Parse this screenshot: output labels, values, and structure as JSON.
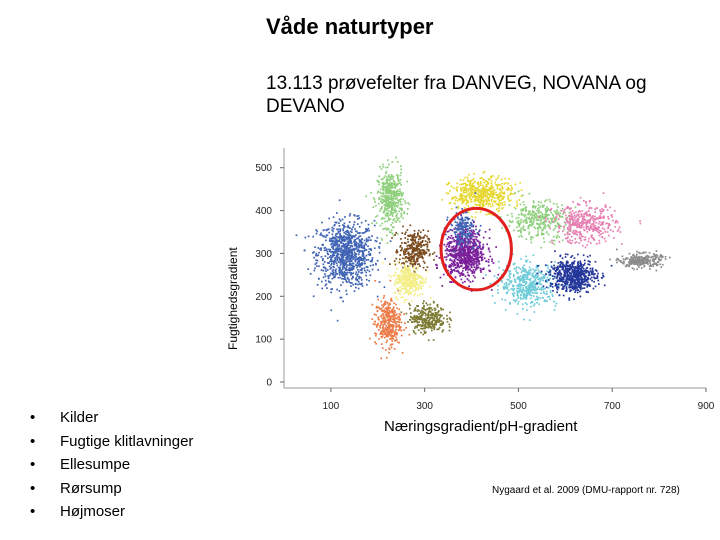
{
  "title": "Våde naturtyper",
  "subtitle": "13.113 prøvefelter fra DANVEG, NOVANA og DEVANO",
  "legend_items": [
    "Kilder",
    "Fugtige klitlavninger",
    "Ellesumpe",
    "Rørsump",
    "Højmoser"
  ],
  "citation": "Nygaard et al. 2009 (DMU-rapport nr. 728)",
  "colors": {
    "blue": "#3f63b4",
    "light_green": "#8fd07d",
    "yellow": "#e7d831",
    "purple": "#7a1f9a",
    "pink": "#e77fb2",
    "cyan": "#6ecbd8",
    "navy": "#23369a",
    "gray": "#8a8a8a",
    "brown": "#7a4a1e",
    "light_yellow": "#f3ee85",
    "orange": "#ec7a46",
    "olive": "#7c7b33",
    "highlight_circle": "#e11f1f"
  },
  "chart_data": {
    "type": "scatter",
    "title": "",
    "xlabel": "Næringsgradient/pH-gradient",
    "ylabel": "Fugtighedsgradient",
    "x_ticks": [
      100,
      300,
      500,
      700,
      900
    ],
    "y_ticks": [
      0,
      100,
      200,
      300,
      400,
      500
    ],
    "xlim": [
      0,
      900
    ],
    "ylim": [
      0,
      560
    ],
    "grid": false,
    "total_points": "13.113",
    "clusters": [
      {
        "color_key": "blue",
        "center": [
          130,
          300
        ],
        "spread": [
          55,
          70
        ],
        "count": 900
      },
      {
        "color_key": "light_green",
        "center": [
          225,
          430
        ],
        "spread": [
          25,
          60
        ],
        "count": 450
      },
      {
        "color_key": "brown",
        "center": [
          275,
          310
        ],
        "spread": [
          28,
          40
        ],
        "count": 300
      },
      {
        "color_key": "light_yellow",
        "center": [
          265,
          240
        ],
        "spread": [
          30,
          35
        ],
        "count": 300
      },
      {
        "color_key": "orange",
        "center": [
          220,
          140
        ],
        "spread": [
          25,
          50
        ],
        "count": 350
      },
      {
        "color_key": "olive",
        "center": [
          305,
          150
        ],
        "spread": [
          35,
          30
        ],
        "count": 300
      },
      {
        "color_key": "purple",
        "center": [
          385,
          300
        ],
        "spread": [
          40,
          50
        ],
        "count": 750
      },
      {
        "color_key": "yellow",
        "center": [
          420,
          440
        ],
        "spread": [
          60,
          35
        ],
        "count": 500
      },
      {
        "color_key": "light_green",
        "center": [
          540,
          380
        ],
        "spread": [
          60,
          40
        ],
        "count": 350
      },
      {
        "color_key": "cyan",
        "center": [
          520,
          230
        ],
        "spread": [
          55,
          45
        ],
        "count": 450
      },
      {
        "color_key": "pink",
        "center": [
          640,
          370
        ],
        "spread": [
          60,
          40
        ],
        "count": 400
      },
      {
        "color_key": "navy",
        "center": [
          615,
          250
        ],
        "spread": [
          45,
          35
        ],
        "count": 600
      },
      {
        "color_key": "gray",
        "center": [
          760,
          285
        ],
        "spread": [
          40,
          15
        ],
        "count": 250
      },
      {
        "color_key": "blue",
        "center": [
          380,
          360
        ],
        "spread": [
          25,
          35
        ],
        "count": 180
      }
    ],
    "annotations": [
      {
        "type": "circle",
        "label": "",
        "center": [
          410,
          310
        ],
        "radii": [
          150,
          190
        ]
      }
    ]
  }
}
